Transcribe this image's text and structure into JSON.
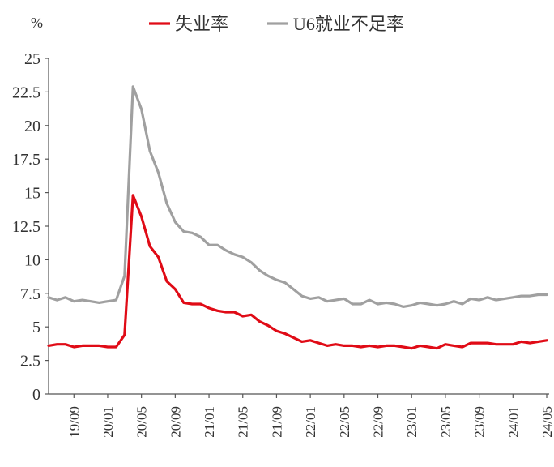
{
  "chart_data": {
    "type": "line",
    "title": "",
    "xlabel": "",
    "ylabel": "%",
    "ylim": [
      0,
      25
    ],
    "grid": false,
    "legend": "top",
    "yticks": [
      "0",
      "2.5",
      "5",
      "7.5",
      "10",
      "12.5",
      "15",
      "17.5",
      "20",
      "22.5",
      "25"
    ],
    "xticks": [
      "19/09",
      "20/01",
      "20/05",
      "20/09",
      "21/01",
      "21/05",
      "21/09",
      "22/01",
      "22/05",
      "22/09",
      "23/01",
      "23/05",
      "23/09",
      "24/01",
      "24/05"
    ],
    "x": [
      "19/06",
      "19/07",
      "19/08",
      "19/09",
      "19/10",
      "19/11",
      "19/12",
      "20/01",
      "20/02",
      "20/03",
      "20/04",
      "20/05",
      "20/06",
      "20/07",
      "20/08",
      "20/09",
      "20/10",
      "20/11",
      "20/12",
      "21/01",
      "21/02",
      "21/03",
      "21/04",
      "21/05",
      "21/06",
      "21/07",
      "21/08",
      "21/09",
      "21/10",
      "21/11",
      "21/12",
      "22/01",
      "22/02",
      "22/03",
      "22/04",
      "22/05",
      "22/06",
      "22/07",
      "22/08",
      "22/09",
      "22/10",
      "22/11",
      "22/12",
      "23/01",
      "23/02",
      "23/03",
      "23/04",
      "23/05",
      "23/06",
      "23/07",
      "23/08",
      "23/09",
      "23/10",
      "23/11",
      "23/12",
      "24/01",
      "24/02",
      "24/03",
      "24/04",
      "24/05"
    ],
    "series": [
      {
        "name": "失业率",
        "color": "#e00b16",
        "values": [
          3.6,
          3.7,
          3.7,
          3.5,
          3.6,
          3.6,
          3.6,
          3.5,
          3.5,
          4.4,
          14.8,
          13.2,
          11.0,
          10.2,
          8.4,
          7.8,
          6.8,
          6.7,
          6.7,
          6.4,
          6.2,
          6.1,
          6.1,
          5.8,
          5.9,
          5.4,
          5.1,
          4.7,
          4.5,
          4.2,
          3.9,
          4.0,
          3.8,
          3.6,
          3.7,
          3.6,
          3.6,
          3.5,
          3.6,
          3.5,
          3.6,
          3.6,
          3.5,
          3.4,
          3.6,
          3.5,
          3.4,
          3.7,
          3.6,
          3.5,
          3.8,
          3.8,
          3.8,
          3.7,
          3.7,
          3.7,
          3.9,
          3.8,
          3.9,
          4.0
        ]
      },
      {
        "name": "U6就业不足率",
        "color": "#a0a0a0",
        "values": [
          7.2,
          7.0,
          7.2,
          6.9,
          7.0,
          6.9,
          6.8,
          6.9,
          7.0,
          8.8,
          22.9,
          21.2,
          18.1,
          16.5,
          14.2,
          12.8,
          12.1,
          12.0,
          11.7,
          11.1,
          11.1,
          10.7,
          10.4,
          10.2,
          9.8,
          9.2,
          8.8,
          8.5,
          8.3,
          7.8,
          7.3,
          7.1,
          7.2,
          6.9,
          7.0,
          7.1,
          6.7,
          6.7,
          7.0,
          6.7,
          6.8,
          6.7,
          6.5,
          6.6,
          6.8,
          6.7,
          6.6,
          6.7,
          6.9,
          6.7,
          7.1,
          7.0,
          7.2,
          7.0,
          7.1,
          7.2,
          7.3,
          7.3,
          7.4,
          7.4
        ]
      }
    ]
  }
}
